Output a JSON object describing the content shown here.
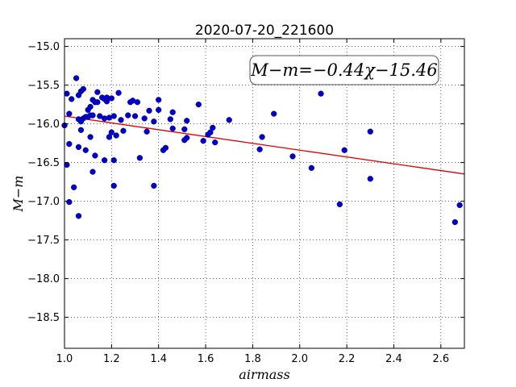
{
  "chart_data": {
    "type": "scatter",
    "title": "2020-07-20_221600",
    "xlabel": "airmass",
    "ylabel": "M−m",
    "annotation": "M−m=−0.44χ−15.46",
    "xlim": [
      1.0,
      2.7
    ],
    "ylim": [
      -18.9,
      -14.9
    ],
    "x_ticks": [
      1.0,
      1.2,
      1.4,
      1.6,
      1.8,
      2.0,
      2.2,
      2.4,
      2.6
    ],
    "x_tick_labels": [
      "1.0",
      "1.2",
      "1.4",
      "1.6",
      "1.8",
      "2.0",
      "2.2",
      "2.4",
      "2.6"
    ],
    "y_ticks": [
      -15.0,
      -15.5,
      -16.0,
      -16.5,
      -17.0,
      -17.5,
      -18.0,
      -18.5
    ],
    "y_tick_labels": [
      "−15.0",
      "−15.5",
      "−16.0",
      "−16.5",
      "−17.0",
      "−17.5",
      "−18.0",
      "−18.5"
    ],
    "grid": true,
    "fit": {
      "slope": -0.44,
      "intercept": -15.46,
      "color": "#e00000"
    },
    "point_color": "#0000c8",
    "x": [
      1.0,
      1.01,
      1.01,
      1.02,
      1.02,
      1.02,
      1.03,
      1.04,
      1.05,
      1.06,
      1.06,
      1.06,
      1.06,
      1.07,
      1.07,
      1.07,
      1.08,
      1.08,
      1.09,
      1.09,
      1.1,
      1.1,
      1.11,
      1.11,
      1.11,
      1.12,
      1.12,
      1.12,
      1.13,
      1.13,
      1.14,
      1.14,
      1.15,
      1.16,
      1.17,
      1.17,
      1.17,
      1.18,
      1.18,
      1.19,
      1.19,
      1.2,
      1.2,
      1.21,
      1.21,
      1.21,
      1.22,
      1.23,
      1.24,
      1.25,
      1.27,
      1.28,
      1.29,
      1.3,
      1.31,
      1.32,
      1.34,
      1.35,
      1.36,
      1.38,
      1.38,
      1.4,
      1.4,
      1.42,
      1.43,
      1.45,
      1.46,
      1.46,
      1.51,
      1.51,
      1.52,
      1.52,
      1.57,
      1.59,
      1.61,
      1.62,
      1.63,
      1.64,
      1.7,
      1.83,
      1.84,
      1.89,
      1.97,
      2.05,
      2.09,
      2.17,
      2.19,
      2.3,
      2.3,
      2.66,
      2.68
    ],
    "y": [
      -16.02,
      -15.61,
      -16.53,
      -15.87,
      -16.26,
      -17.01,
      -15.68,
      -16.82,
      -15.41,
      -15.63,
      -15.94,
      -16.3,
      -17.19,
      -15.97,
      -16.08,
      -15.58,
      -15.93,
      -15.55,
      -15.91,
      -16.34,
      -15.82,
      -15.91,
      -16.17,
      -15.78,
      -15.89,
      -15.69,
      -15.89,
      -16.62,
      -15.72,
      -16.41,
      -15.59,
      -15.72,
      -15.9,
      -15.66,
      -16.47,
      -15.68,
      -15.93,
      -15.71,
      -15.66,
      -15.92,
      -16.17,
      -15.67,
      -16.11,
      -16.47,
      -16.8,
      -15.9,
      -16.15,
      -15.6,
      -15.95,
      -16.09,
      -15.89,
      -15.72,
      -15.7,
      -15.9,
      -15.72,
      -16.44,
      -15.93,
      -16.1,
      -15.83,
      -15.97,
      -16.8,
      -15.69,
      -15.82,
      -16.34,
      -16.31,
      -15.94,
      -15.85,
      -16.06,
      -16.07,
      -16.21,
      -15.96,
      -16.18,
      -15.75,
      -16.22,
      -16.14,
      -16.11,
      -16.05,
      -16.24,
      -15.95,
      -16.33,
      -16.17,
      -15.87,
      -16.42,
      -16.57,
      -15.61,
      -17.04,
      -16.34,
      -16.1,
      -16.71,
      -17.27,
      -17.05
    ]
  }
}
